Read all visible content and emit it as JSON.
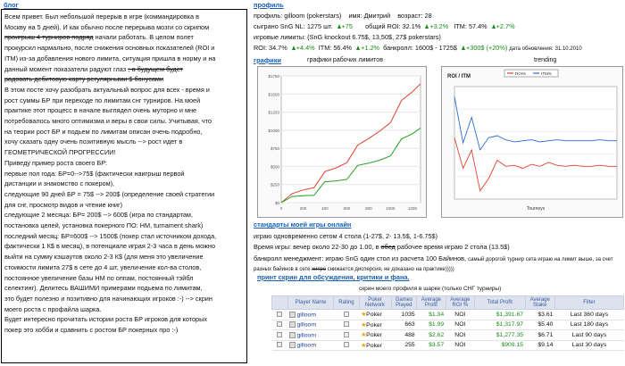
{
  "blog": {
    "title": "блог",
    "lines": [
      "Всем привет. Был небольшой перерыв в игре (коммандировка в",
      "Москву на 5 дней). И как обычно после перерыва мозги со скрипом",
      {
        "strike": "проигрыш 4 турниров подряд",
        "rest": " начали работать. В целом полет"
      },
      "прокурсил нармально, после снижения основных показателей (ROI и",
      "ITM) из-за добавления нового лимита, ситуация пришла в норму и на",
      {
        "pre": "данный момент показатели радуют глаз ",
        "strike": ";-а будущем будет"
      },
      {
        "strike": "радовать дебитовую карту регулярными $ бонусами"
      },
      "В этом посте хочу разобрать актуальный вопрос для всех  -  время и",
      "рост суммы БР при переходе по лимитам снг турниров. На моей",
      "практике этот процесс в начале выглядел очень муторно и мне",
      "потребовалось много оптимизма и веры в свои силы.  Учитывая, что",
      "на теории рост БР и подьем по лимитам описан очень подробно,",
      "хочу сказать одну очень позитивную мысль --> рост идет в",
      "ГЕОМЕТРИЧЕСКОЙ ПРОГРЕССИИ!",
      "Приведу пример роста своего БР:",
      "первые пол года: БР=0-->75$ (фактически наигрыш первой",
      "дистанции и знакомство с покером),",
      "следующие 90 дней БР = 75$ --> 200$ (определение своей стратегии",
      "для снг, просмотр видов и чтение книг)",
      "следующие 2 месяца: БР= 200$ --> 600$ (игра по стандартам,",
      "постановка целей, установка покерного ПО: HM, turnament shark)",
      "последний месяц: БР=600$ --> 1500$ (покер стал источником дохода,",
      "фактически 1 К$ в месяц), в потенциале играя 2-3 часа в день можно",
      "выйти на сумму кэшаутов около 2-3 К$ (для меня это увеличение",
      "стоимости лимита 27$ в сете до 4 шт, увеличение кол-ва столов,",
      "постоянное увеличение базы HM по оппам, постоянный тэйбл",
      "селектинг). Делитесь ВАШИМИ примерами подьема по лимитам,",
      "это будет полезно и позитивно для начинающих игроков :-) --> скрин",
      "моего роста с профайла шарка.",
      "Будет интересно прочитать истории роста БР игроков для которых",
      "покер это хобби и сравнить с ростом  БР покерных про :-)"
    ]
  },
  "profile": {
    "title": "профиль",
    "row1": {
      "profile_label": "профиль:",
      "profile_value": "gilloom (pokerstars)",
      "name_label": "имя:",
      "name_value": "Дмитрий",
      "age_label": "возраст:",
      "age_value": "28"
    },
    "row2": {
      "played_label": "сыграно SnG NL:",
      "played_value": "1275 шт.",
      "played_delta": "+75",
      "roi_label": "общий ROI:",
      "roi_value": "32.1%",
      "roi_delta": "+3.2%",
      "itm_label": "ITM:",
      "itm_value": "57.4%",
      "itm_delta": "+2.7%"
    },
    "row3": {
      "label": "игровые лимиты:",
      "value": "(SnG knockout  6.75$, 13,50$, 27$ pokerstars)"
    },
    "row4": {
      "roi_label": "ROI:",
      "roi_value": "34.7%",
      "roi_delta": "+4.4%",
      "itm_label": "ITM:",
      "itm_value": "56.4%",
      "itm_delta": "+1.2%",
      "bank_label": "банкролл:",
      "bank_value": "1600$ - 1725$",
      "bank_delta": "+300$",
      "bank_pct": "(+20%)",
      "update_label": "дата обновления:",
      "update_value": "31.10.2010"
    }
  },
  "charts": {
    "title": "графики",
    "limits_title": "графики рабочих лимитов",
    "trending_title": "trending",
    "left_chart": {
      "y_ticks": [
        "$1750",
        "$1500",
        "$1250",
        "$1000",
        "$750",
        "$500",
        "$250",
        "$0"
      ],
      "x_ticks": [
        "0",
        "200",
        "400",
        "600",
        "800",
        "1000",
        "1200"
      ]
    },
    "right_chart": {
      "title": "ROI / ITM",
      "legend": [
        "ROI%",
        "ITM%"
      ],
      "xlabel": "Tourneys"
    }
  },
  "chart_data": [
    {
      "type": "line",
      "title": "",
      "xlim": [
        0,
        1275
      ],
      "ylim": [
        0,
        1750
      ],
      "series": [
        {
          "x": [
            0,
            100,
            200,
            300,
            400,
            500,
            600,
            700,
            800,
            900,
            1000,
            1100,
            1200,
            1275
          ],
          "values": [
            0,
            100,
            200,
            280,
            380,
            480,
            600,
            720,
            860,
            1010,
            1180,
            1360,
            1530,
            1640
          ],
          "color": "#e04030"
        },
        {
          "x": [
            0,
            100,
            200,
            300,
            400,
            500,
            600,
            700,
            800,
            900,
            1000,
            1100,
            1200,
            1275
          ],
          "values": [
            0,
            60,
            120,
            175,
            240,
            300,
            370,
            440,
            520,
            610,
            720,
            830,
            950,
            1030
          ],
          "color": "#22a022"
        }
      ]
    },
    {
      "type": "line",
      "title": "ROI / ITM",
      "xlabel": "Tourneys",
      "series": [
        {
          "name": "ROI%",
          "values": [
            60,
            30,
            48,
            8,
            20,
            38,
            32,
            33,
            30,
            34,
            32,
            36,
            33,
            32,
            33,
            32,
            32,
            33,
            32,
            32
          ],
          "color": "#e04030"
        },
        {
          "name": "ITM%",
          "values": [
            100,
            55,
            80,
            48,
            60,
            62,
            58,
            56,
            57,
            58,
            56,
            57,
            58,
            57,
            57,
            57,
            57,
            58,
            57,
            57
          ],
          "color": "#2a6bd0"
        }
      ]
    }
  ],
  "standards": {
    "title": "стандарты моей игры онлайн",
    "line1": "играю одновременно сетом 4 стола (1-27$, 2- 13.5$, 1-6.75$)",
    "line2_pre": "Время игры: вечер около 22-30 до 1.00, в ",
    "line2_strike": "обед",
    "line2_post": " рабочее время играю 2 стола (13.5$)",
    "line3_pre": "банкролл менеджмент: играю SnG один стол из расчета 100 Байинов, ",
    "line3_small": "самый дорогой турнир сета играю на лимит выше, за счет разных байинов в сете ",
    "line3_strike": "хитро",
    "line3_post": " снижается дисперсия, не доказано на практике)))))"
  },
  "links": {
    "title": "принт скрин для обсуждения, критики и фана.",
    "caption": "скрин моего профиля в шарке (только СНГ турниры)"
  },
  "table": {
    "headers": [
      "Player Name",
      "Rating",
      "Poker Network",
      "Games Played",
      "Average Profit",
      "Average ROI %",
      "Total Profit",
      "Average Stake",
      "Filter"
    ],
    "rows": [
      {
        "name": "gilloom",
        "network": "Poker",
        "games": "1035",
        "profit": "$1.34",
        "roi": "NOI",
        "total": "$1,391.67",
        "stake": "$3.61",
        "filter": "Last 360 days"
      },
      {
        "name": "gilloom",
        "network": "Poker",
        "games": "663",
        "profit": "$1.99",
        "roi": "NOI",
        "total": "$1,317.97",
        "stake": "$5.40",
        "filter": "Last 180 days"
      },
      {
        "name": "gilloom",
        "network": "Poker",
        "games": "488",
        "profit": "$2.62",
        "roi": "NOI",
        "total": "$1,277.35",
        "stake": "$6.71",
        "filter": "Last 90 days"
      },
      {
        "name": "gilloom",
        "network": "Poker",
        "games": "255",
        "profit": "$3.57",
        "roi": "NOI",
        "total": "$909.15",
        "stake": "$9.14",
        "filter": "Last 30 days"
      }
    ]
  }
}
